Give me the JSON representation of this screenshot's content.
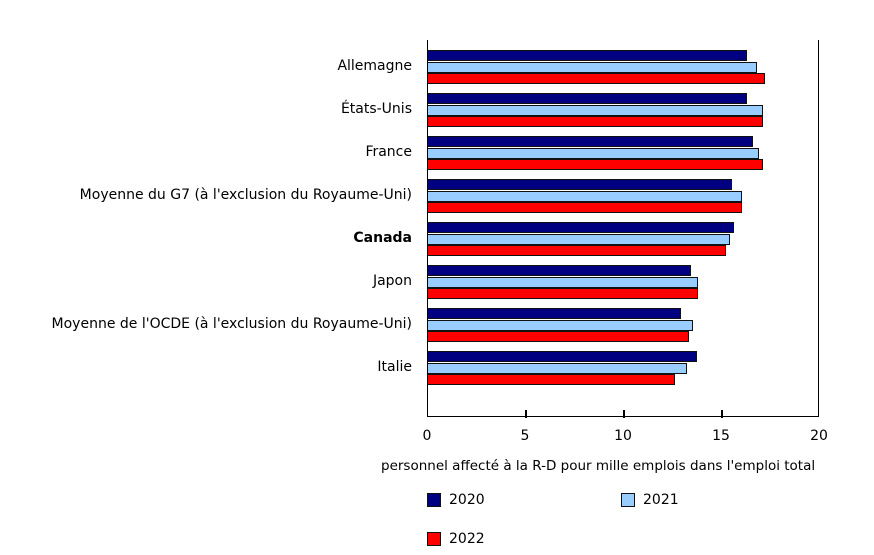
{
  "chart_data": {
    "type": "bar",
    "orientation": "horizontal",
    "title": "",
    "xlabel": "personnel affecté à la R-D pour mille emplois dans l'emploi total",
    "ylabel": "",
    "xlim": [
      0,
      20
    ],
    "xticks": [
      "0",
      "5",
      "10",
      "15",
      "20"
    ],
    "grid": false,
    "legend_position": "bottom",
    "categories": [
      "Allemagne",
      "États-Unis",
      "France",
      "Moyenne du G7 (à l'exclusion du Royaume-Uni)",
      "Canada",
      "Japon",
      "Moyenne de l'OCDE (à l'exclusion du Royaume-Uni)",
      "Italie"
    ],
    "highlighted_category": "Canada",
    "series": [
      {
        "name": "2020",
        "color": "#000080",
        "values": [
          16.3,
          16.3,
          16.6,
          15.5,
          15.6,
          13.4,
          12.9,
          13.7
        ]
      },
      {
        "name": "2021",
        "color": "#99CCFF",
        "values": [
          16.8,
          17.1,
          16.9,
          16.0,
          15.4,
          13.8,
          13.5,
          13.2
        ]
      },
      {
        "name": "2022",
        "color": "#FF0000",
        "values": [
          17.2,
          17.1,
          17.1,
          16.0,
          15.2,
          13.8,
          13.3,
          12.6
        ]
      }
    ]
  }
}
